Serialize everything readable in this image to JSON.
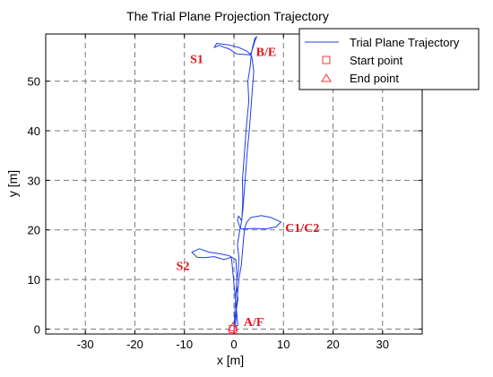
{
  "chart_data": {
    "type": "line",
    "title": "The Trial Plane Projection Trajectory",
    "xlabel": "x [m]",
    "ylabel": "y [m]",
    "xlim": [
      -38,
      38
    ],
    "ylim": [
      -1,
      59.5
    ],
    "xticks": [
      -30,
      -20,
      -10,
      0,
      10,
      20,
      30
    ],
    "yticks": [
      0,
      10,
      20,
      30,
      40,
      50
    ],
    "grid": true,
    "legend_position": "top-right",
    "legend": [
      "Trial Plane Trajectory",
      "Start point",
      "End point"
    ],
    "series": [
      {
        "name": "Trial Plane Trajectory",
        "color": "#1f3fe8",
        "x": [
          0.0,
          0.2,
          0.5,
          0.8,
          0.5,
          0.9,
          1.0,
          0.7,
          1.1,
          1.3,
          1.6,
          1.8,
          1.7,
          2.0,
          2.3,
          2.6,
          3.0,
          2.8,
          3.3,
          3.5,
          3.8,
          4.2,
          4.6,
          4.2,
          3.6,
          3.2,
          0.5,
          -1.0,
          -3.0,
          -4.0,
          -3.5,
          -1.0,
          1.0,
          2.7,
          3.6,
          4.0,
          3.7,
          3.4,
          3.1,
          2.7,
          2.4,
          2.1,
          1.8,
          1.6,
          1.4,
          1.2,
          0.9,
          0.7,
          1.2,
          1.5,
          4.0,
          6.5,
          8.5,
          9.5,
          7.5,
          5.5,
          3.4,
          2.6,
          2.2,
          2.0,
          1.8,
          1.5,
          1.0,
          0.7,
          0.5,
          0.4,
          0.3,
          0.2,
          0.3,
          0.4,
          0.8,
          -0.5,
          -2.0,
          -4.0,
          -6.0,
          -7.5,
          -8.5,
          -7.0,
          -5.0,
          -3.0,
          -1.0,
          0.4,
          0.6,
          0.3,
          0.1,
          0.0
        ],
        "y": [
          0.0,
          2.0,
          4.0,
          6.0,
          9.0,
          12.0,
          14.5,
          17.0,
          19.5,
          20.5,
          22.0,
          26.0,
          30.0,
          34.0,
          38.0,
          42.0,
          46.0,
          50.0,
          53.0,
          55.5,
          57.0,
          58.5,
          59.0,
          58.0,
          56.0,
          55.3,
          55.5,
          56.5,
          57.2,
          56.8,
          57.6,
          57.3,
          56.8,
          56.0,
          55.0,
          52.0,
          48.0,
          44.0,
          40.0,
          36.0,
          32.0,
          28.0,
          24.0,
          22.3,
          22.0,
          22.5,
          22.8,
          22.0,
          20.5,
          20.2,
          20.3,
          20.2,
          20.6,
          21.6,
          22.5,
          22.9,
          22.5,
          21.6,
          20.5,
          19.0,
          16.5,
          13.0,
          10.0,
          7.0,
          4.0,
          2.0,
          1.0,
          0.5,
          0.3,
          0.5,
          0.8,
          14.5,
          14.0,
          14.6,
          14.4,
          14.5,
          15.5,
          16.2,
          15.5,
          15.2,
          14.8,
          14.0,
          10.0,
          6.0,
          2.0,
          0.0
        ]
      }
    ],
    "start_point": {
      "x": -0.2,
      "y": 0.0,
      "marker": "square",
      "color": "#ff3030"
    },
    "end_point": {
      "x": -0.2,
      "y": 0.4,
      "marker": "triangle",
      "color": "#ff3030"
    },
    "annotations": [
      {
        "text": "S1",
        "x": -7.5,
        "y": 54.5
      },
      {
        "text": "B/E",
        "x": 6.5,
        "y": 56.0
      },
      {
        "text": "C1/C2",
        "x": 13.8,
        "y": 20.5
      },
      {
        "text": "S2",
        "x": -10.3,
        "y": 12.8
      },
      {
        "text": "A/F",
        "x": 4.0,
        "y": 1.5
      }
    ]
  }
}
